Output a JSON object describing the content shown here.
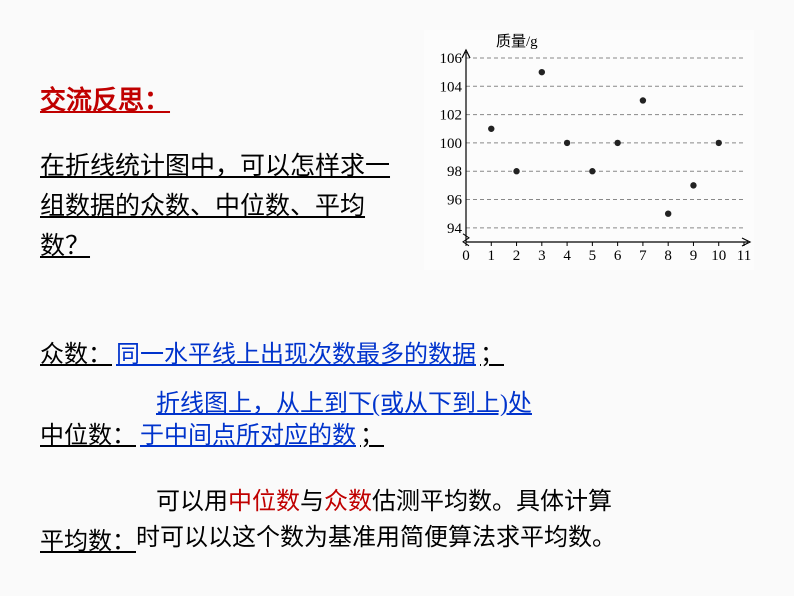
{
  "title": "交流反思：",
  "question": "在折线统计图中，可以怎样求一组数据的众数、中位数、平均数？",
  "chart": {
    "type": "scatter",
    "y_axis_label": "质量/g",
    "xlim": [
      0,
      11
    ],
    "ylim": [
      93,
      106
    ],
    "y_ticks": [
      94,
      96,
      98,
      100,
      102,
      104,
      106
    ],
    "x_ticks": [
      0,
      1,
      2,
      3,
      4,
      5,
      6,
      7,
      8,
      9,
      10,
      11
    ],
    "grid_style": "dashed",
    "grid_color": "#888888",
    "axis_color": "#000000",
    "background_color": "#fcfcfc",
    "point_color": "#222222",
    "point_radius": 3.2,
    "label_fontsize": 15,
    "points": [
      {
        "x": 1,
        "y": 101
      },
      {
        "x": 2,
        "y": 98
      },
      {
        "x": 3,
        "y": 105
      },
      {
        "x": 4,
        "y": 100
      },
      {
        "x": 5,
        "y": 98
      },
      {
        "x": 6,
        "y": 100
      },
      {
        "x": 7,
        "y": 103
      },
      {
        "x": 8,
        "y": 95
      },
      {
        "x": 9,
        "y": 97
      },
      {
        "x": 10,
        "y": 100
      }
    ]
  },
  "mode": {
    "label": "众数：",
    "answer": "同一水平线上出现次数最多的数据",
    "after": "；"
  },
  "median": {
    "label": "中位数：",
    "line1": "折线图上，从上到下(或从下到上)处",
    "answer": "于中间点所对应的数",
    "after": "；"
  },
  "mean": {
    "label": "平均数：",
    "text_before1": "可以用",
    "red1": "中位数",
    "text_mid": "与",
    "red2": "众数",
    "text_after1": "估测平均数。具体计算",
    "line2": "时可以以这个数为基准用简便算法求平均数。"
  }
}
